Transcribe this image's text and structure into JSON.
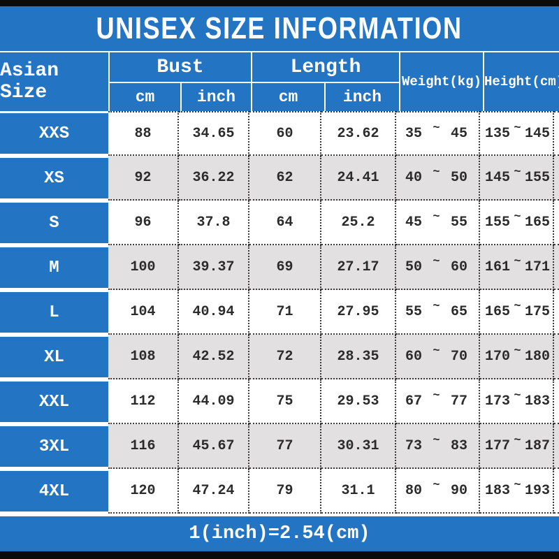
{
  "title": "UNISEX SIZE INFORMATION",
  "footer_note": "1(inch)=2.54(cm)",
  "colors": {
    "accent_blue": "#2474c4",
    "alt_row_gray": "#e2e0e1",
    "top_bottom_bar": "#0b0b0b",
    "data_text": "#2b2b2b"
  },
  "header": {
    "asian_size": "Asian Size",
    "bust": "Bust",
    "length": "Length",
    "weight": "Weight(kg)",
    "height": "Height(cm)",
    "cm": "cm",
    "inch": "inch",
    "tilde": "~"
  },
  "rows": [
    {
      "size": "XXS",
      "bust_cm": "88",
      "bust_inch": "34.65",
      "length_cm": "60",
      "length_inch": "23.62",
      "weight_min": "35",
      "weight_max": "45",
      "height_min": "135",
      "height_max": "145"
    },
    {
      "size": "XS",
      "bust_cm": "92",
      "bust_inch": "36.22",
      "length_cm": "62",
      "length_inch": "24.41",
      "weight_min": "40",
      "weight_max": "50",
      "height_min": "145",
      "height_max": "155"
    },
    {
      "size": "S",
      "bust_cm": "96",
      "bust_inch": "37.8",
      "length_cm": "64",
      "length_inch": "25.2",
      "weight_min": "45",
      "weight_max": "55",
      "height_min": "155",
      "height_max": "165"
    },
    {
      "size": "M",
      "bust_cm": "100",
      "bust_inch": "39.37",
      "length_cm": "69",
      "length_inch": "27.17",
      "weight_min": "50",
      "weight_max": "60",
      "height_min": "161",
      "height_max": "171"
    },
    {
      "size": "L",
      "bust_cm": "104",
      "bust_inch": "40.94",
      "length_cm": "71",
      "length_inch": "27.95",
      "weight_min": "55",
      "weight_max": "65",
      "height_min": "165",
      "height_max": "175"
    },
    {
      "size": "XL",
      "bust_cm": "108",
      "bust_inch": "42.52",
      "length_cm": "72",
      "length_inch": "28.35",
      "weight_min": "60",
      "weight_max": "70",
      "height_min": "170",
      "height_max": "180"
    },
    {
      "size": "XXL",
      "bust_cm": "112",
      "bust_inch": "44.09",
      "length_cm": "75",
      "length_inch": "29.53",
      "weight_min": "67",
      "weight_max": "77",
      "height_min": "173",
      "height_max": "183"
    },
    {
      "size": "3XL",
      "bust_cm": "116",
      "bust_inch": "45.67",
      "length_cm": "77",
      "length_inch": "30.31",
      "weight_min": "73",
      "weight_max": "83",
      "height_min": "177",
      "height_max": "187"
    },
    {
      "size": "4XL",
      "bust_cm": "120",
      "bust_inch": "47.24",
      "length_cm": "79",
      "length_inch": "31.1",
      "weight_min": "80",
      "weight_max": "90",
      "height_min": "183",
      "height_max": "193"
    }
  ]
}
